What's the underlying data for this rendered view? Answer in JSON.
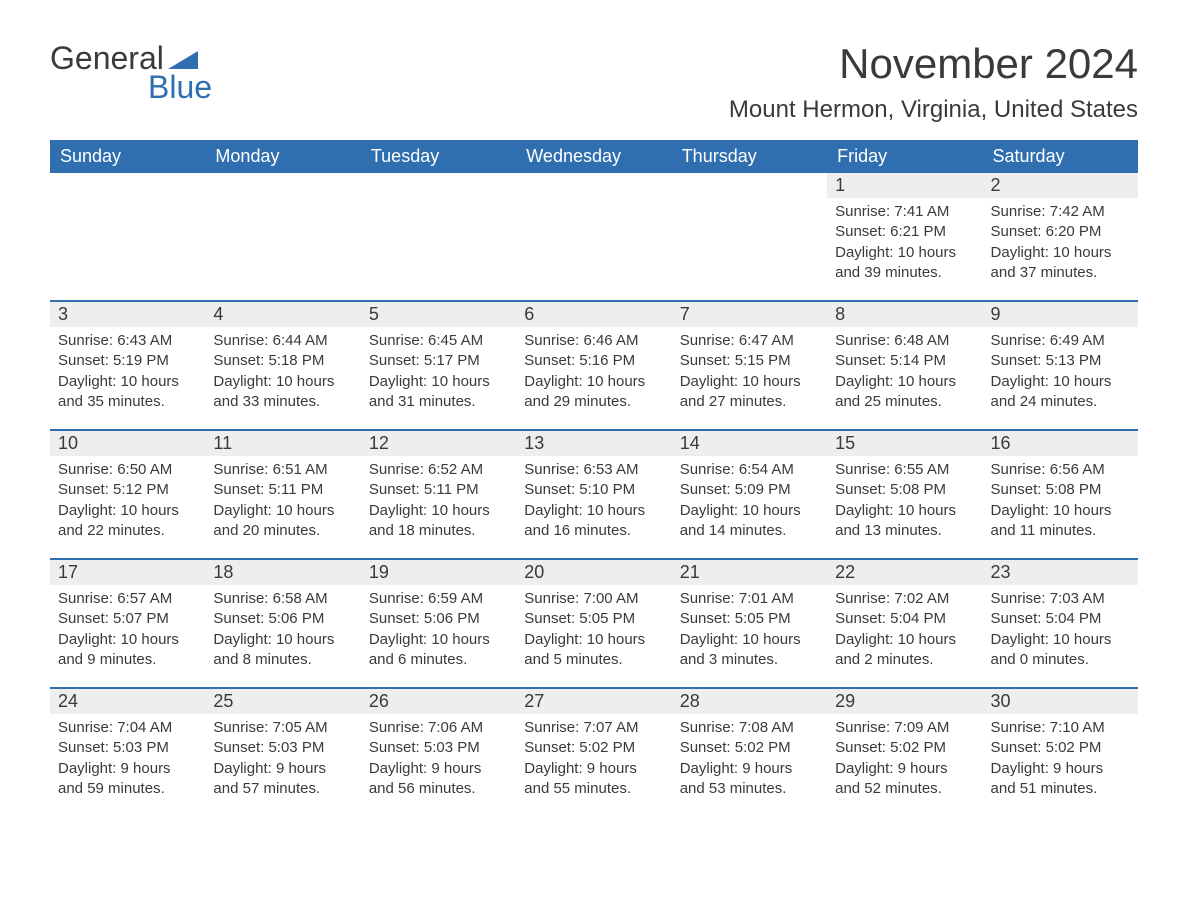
{
  "brand": {
    "text_general": "General",
    "text_blue": "Blue",
    "icon_color": "#2f6fb0"
  },
  "header": {
    "month_title": "November 2024",
    "location": "Mount Hermon, Virginia, United States"
  },
  "calendar": {
    "header_bg": "#2f6fb0",
    "header_fg": "#ffffff",
    "daynum_bg": "#eeeeee",
    "separator_color": "#2f6fb0",
    "text_color": "#3a3a3a",
    "background": "#ffffff",
    "columns": [
      "Sunday",
      "Monday",
      "Tuesday",
      "Wednesday",
      "Thursday",
      "Friday",
      "Saturday"
    ],
    "weeks": [
      [
        null,
        null,
        null,
        null,
        null,
        {
          "n": "1",
          "sunrise": "Sunrise: 7:41 AM",
          "sunset": "Sunset: 6:21 PM",
          "d1": "Daylight: 10 hours",
          "d2": "and 39 minutes."
        },
        {
          "n": "2",
          "sunrise": "Sunrise: 7:42 AM",
          "sunset": "Sunset: 6:20 PM",
          "d1": "Daylight: 10 hours",
          "d2": "and 37 minutes."
        }
      ],
      [
        {
          "n": "3",
          "sunrise": "Sunrise: 6:43 AM",
          "sunset": "Sunset: 5:19 PM",
          "d1": "Daylight: 10 hours",
          "d2": "and 35 minutes."
        },
        {
          "n": "4",
          "sunrise": "Sunrise: 6:44 AM",
          "sunset": "Sunset: 5:18 PM",
          "d1": "Daylight: 10 hours",
          "d2": "and 33 minutes."
        },
        {
          "n": "5",
          "sunrise": "Sunrise: 6:45 AM",
          "sunset": "Sunset: 5:17 PM",
          "d1": "Daylight: 10 hours",
          "d2": "and 31 minutes."
        },
        {
          "n": "6",
          "sunrise": "Sunrise: 6:46 AM",
          "sunset": "Sunset: 5:16 PM",
          "d1": "Daylight: 10 hours",
          "d2": "and 29 minutes."
        },
        {
          "n": "7",
          "sunrise": "Sunrise: 6:47 AM",
          "sunset": "Sunset: 5:15 PM",
          "d1": "Daylight: 10 hours",
          "d2": "and 27 minutes."
        },
        {
          "n": "8",
          "sunrise": "Sunrise: 6:48 AM",
          "sunset": "Sunset: 5:14 PM",
          "d1": "Daylight: 10 hours",
          "d2": "and 25 minutes."
        },
        {
          "n": "9",
          "sunrise": "Sunrise: 6:49 AM",
          "sunset": "Sunset: 5:13 PM",
          "d1": "Daylight: 10 hours",
          "d2": "and 24 minutes."
        }
      ],
      [
        {
          "n": "10",
          "sunrise": "Sunrise: 6:50 AM",
          "sunset": "Sunset: 5:12 PM",
          "d1": "Daylight: 10 hours",
          "d2": "and 22 minutes."
        },
        {
          "n": "11",
          "sunrise": "Sunrise: 6:51 AM",
          "sunset": "Sunset: 5:11 PM",
          "d1": "Daylight: 10 hours",
          "d2": "and 20 minutes."
        },
        {
          "n": "12",
          "sunrise": "Sunrise: 6:52 AM",
          "sunset": "Sunset: 5:11 PM",
          "d1": "Daylight: 10 hours",
          "d2": "and 18 minutes."
        },
        {
          "n": "13",
          "sunrise": "Sunrise: 6:53 AM",
          "sunset": "Sunset: 5:10 PM",
          "d1": "Daylight: 10 hours",
          "d2": "and 16 minutes."
        },
        {
          "n": "14",
          "sunrise": "Sunrise: 6:54 AM",
          "sunset": "Sunset: 5:09 PM",
          "d1": "Daylight: 10 hours",
          "d2": "and 14 minutes."
        },
        {
          "n": "15",
          "sunrise": "Sunrise: 6:55 AM",
          "sunset": "Sunset: 5:08 PM",
          "d1": "Daylight: 10 hours",
          "d2": "and 13 minutes."
        },
        {
          "n": "16",
          "sunrise": "Sunrise: 6:56 AM",
          "sunset": "Sunset: 5:08 PM",
          "d1": "Daylight: 10 hours",
          "d2": "and 11 minutes."
        }
      ],
      [
        {
          "n": "17",
          "sunrise": "Sunrise: 6:57 AM",
          "sunset": "Sunset: 5:07 PM",
          "d1": "Daylight: 10 hours",
          "d2": "and 9 minutes."
        },
        {
          "n": "18",
          "sunrise": "Sunrise: 6:58 AM",
          "sunset": "Sunset: 5:06 PM",
          "d1": "Daylight: 10 hours",
          "d2": "and 8 minutes."
        },
        {
          "n": "19",
          "sunrise": "Sunrise: 6:59 AM",
          "sunset": "Sunset: 5:06 PM",
          "d1": "Daylight: 10 hours",
          "d2": "and 6 minutes."
        },
        {
          "n": "20",
          "sunrise": "Sunrise: 7:00 AM",
          "sunset": "Sunset: 5:05 PM",
          "d1": "Daylight: 10 hours",
          "d2": "and 5 minutes."
        },
        {
          "n": "21",
          "sunrise": "Sunrise: 7:01 AM",
          "sunset": "Sunset: 5:05 PM",
          "d1": "Daylight: 10 hours",
          "d2": "and 3 minutes."
        },
        {
          "n": "22",
          "sunrise": "Sunrise: 7:02 AM",
          "sunset": "Sunset: 5:04 PM",
          "d1": "Daylight: 10 hours",
          "d2": "and 2 minutes."
        },
        {
          "n": "23",
          "sunrise": "Sunrise: 7:03 AM",
          "sunset": "Sunset: 5:04 PM",
          "d1": "Daylight: 10 hours",
          "d2": "and 0 minutes."
        }
      ],
      [
        {
          "n": "24",
          "sunrise": "Sunrise: 7:04 AM",
          "sunset": "Sunset: 5:03 PM",
          "d1": "Daylight: 9 hours",
          "d2": "and 59 minutes."
        },
        {
          "n": "25",
          "sunrise": "Sunrise: 7:05 AM",
          "sunset": "Sunset: 5:03 PM",
          "d1": "Daylight: 9 hours",
          "d2": "and 57 minutes."
        },
        {
          "n": "26",
          "sunrise": "Sunrise: 7:06 AM",
          "sunset": "Sunset: 5:03 PM",
          "d1": "Daylight: 9 hours",
          "d2": "and 56 minutes."
        },
        {
          "n": "27",
          "sunrise": "Sunrise: 7:07 AM",
          "sunset": "Sunset: 5:02 PM",
          "d1": "Daylight: 9 hours",
          "d2": "and 55 minutes."
        },
        {
          "n": "28",
          "sunrise": "Sunrise: 7:08 AM",
          "sunset": "Sunset: 5:02 PM",
          "d1": "Daylight: 9 hours",
          "d2": "and 53 minutes."
        },
        {
          "n": "29",
          "sunrise": "Sunrise: 7:09 AM",
          "sunset": "Sunset: 5:02 PM",
          "d1": "Daylight: 9 hours",
          "d2": "and 52 minutes."
        },
        {
          "n": "30",
          "sunrise": "Sunrise: 7:10 AM",
          "sunset": "Sunset: 5:02 PM",
          "d1": "Daylight: 9 hours",
          "d2": "and 51 minutes."
        }
      ]
    ]
  }
}
